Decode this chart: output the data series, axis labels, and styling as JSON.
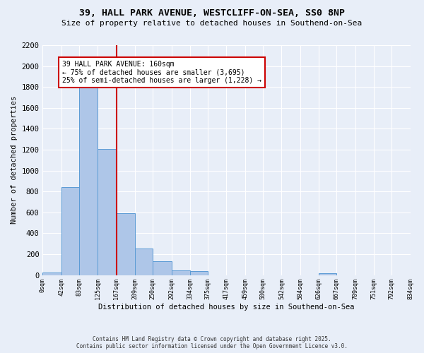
{
  "title_line1": "39, HALL PARK AVENUE, WESTCLIFF-ON-SEA, SS0 8NP",
  "title_line2": "Size of property relative to detached houses in Southend-on-Sea",
  "xlabel": "Distribution of detached houses by size in Southend-on-Sea",
  "ylabel": "Number of detached properties",
  "bar_edges": [
    0,
    42,
    83,
    125,
    167,
    209,
    250,
    292,
    334,
    375,
    417,
    459,
    500,
    542,
    584,
    626,
    667,
    709,
    751,
    792,
    834
  ],
  "bar_heights": [
    25,
    845,
    1820,
    1210,
    595,
    255,
    130,
    45,
    35,
    0,
    0,
    0,
    0,
    0,
    0,
    15,
    0,
    0,
    0,
    0
  ],
  "bar_color": "#AEC6E8",
  "bar_edge_color": "#5B9BD5",
  "red_line_x": 167,
  "annotation_text": "39 HALL PARK AVENUE: 160sqm\n← 75% of detached houses are smaller (3,695)\n25% of semi-detached houses are larger (1,228) →",
  "annotation_box_color": "#ffffff",
  "annotation_box_edge": "#cc0000",
  "red_line_color": "#cc0000",
  "ylim": [
    0,
    2200
  ],
  "yticks": [
    0,
    200,
    400,
    600,
    800,
    1000,
    1200,
    1400,
    1600,
    1800,
    2000,
    2200
  ],
  "tick_labels": [
    "0sqm",
    "42sqm",
    "83sqm",
    "125sqm",
    "167sqm",
    "209sqm",
    "250sqm",
    "292sqm",
    "334sqm",
    "375sqm",
    "417sqm",
    "459sqm",
    "500sqm",
    "542sqm",
    "584sqm",
    "626sqm",
    "667sqm",
    "709sqm",
    "751sqm",
    "792sqm",
    "834sqm"
  ],
  "background_color": "#E8EEF8",
  "grid_color": "#ffffff",
  "footer_line1": "Contains HM Land Registry data © Crown copyright and database right 2025.",
  "footer_line2": "Contains public sector information licensed under the Open Government Licence v3.0."
}
